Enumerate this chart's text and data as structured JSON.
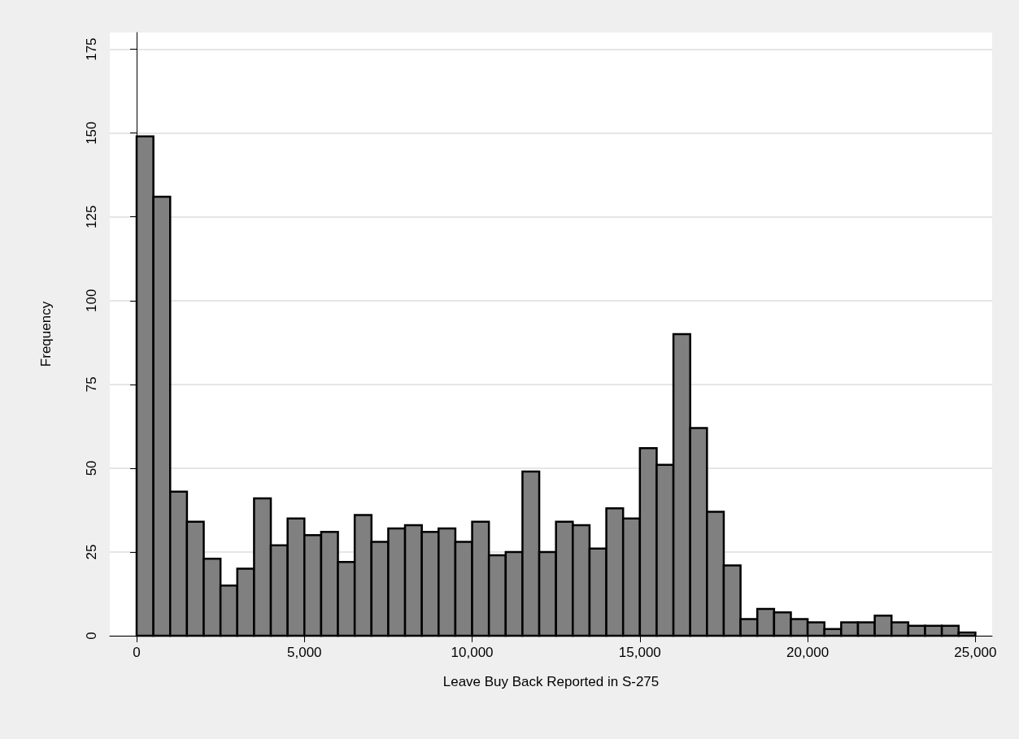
{
  "chart_data": {
    "type": "histogram",
    "xlabel": "Leave Buy Back Reported in S-275",
    "ylabel": "Frequency",
    "bins": [
      0,
      500,
      1000,
      1500,
      2000,
      2500,
      3000,
      3500,
      4000,
      4500,
      5000,
      5500,
      6000,
      6500,
      7000,
      7500,
      8000,
      8500,
      9000,
      9500,
      10000,
      10500,
      11000,
      11500,
      12000,
      12500,
      13000,
      13500,
      14000,
      14500,
      15000,
      15500,
      16000,
      16500,
      17000,
      17500,
      18000,
      18500,
      19000,
      19500,
      20000,
      20500,
      21000,
      21500,
      22000,
      22500,
      23000,
      23500,
      24000,
      24500,
      25000
    ],
    "values": [
      149,
      131,
      43,
      34,
      23,
      15,
      20,
      41,
      27,
      35,
      30,
      31,
      22,
      36,
      28,
      32,
      33,
      31,
      32,
      28,
      34,
      24,
      25,
      49,
      25,
      34,
      33,
      26,
      38,
      35,
      56,
      51,
      90,
      62,
      37,
      21,
      5,
      8,
      7,
      5,
      4,
      2,
      4,
      4,
      6,
      4,
      3,
      3,
      3,
      1
    ],
    "color": "#808080",
    "xlim": [
      -800,
      25500
    ],
    "xticks": [
      0,
      {
        "value": 5000,
        "label": "5,000"
      },
      {
        "value": 10000,
        "label": "10,000"
      },
      {
        "value": 15000,
        "label": "15,000"
      },
      {
        "value": 20000,
        "label": "20,000"
      },
      {
        "value": 25000,
        "label": "25,000"
      }
    ],
    "ylim": [
      0,
      180
    ],
    "yticks": [
      0,
      25,
      50,
      75,
      100,
      125,
      150,
      175
    ],
    "grid": "y"
  }
}
